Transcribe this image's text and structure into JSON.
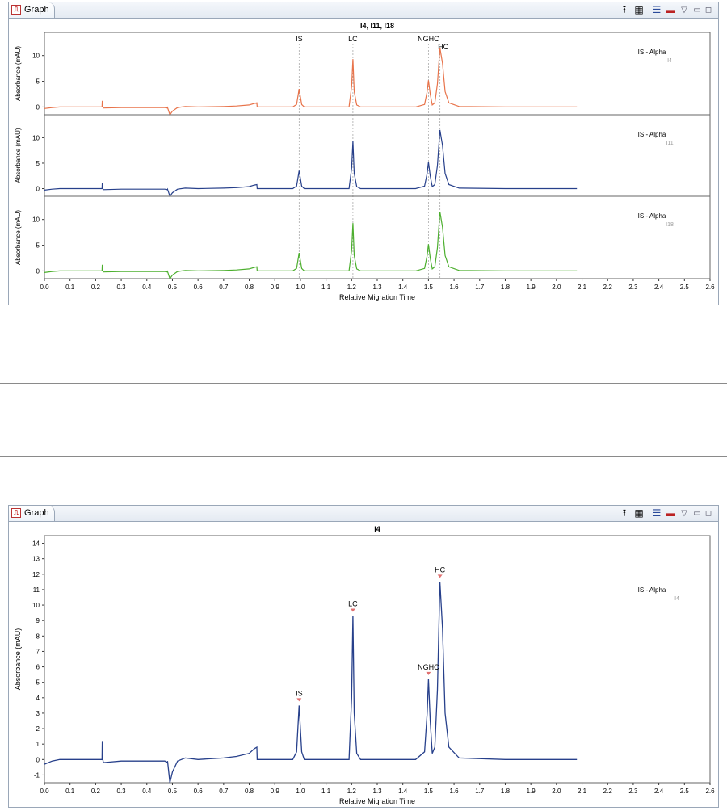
{
  "window": {
    "tab_label": "Graph",
    "tab_icon": "chart-icon"
  },
  "toolbar": [
    {
      "name": "export-icon",
      "glyph": "⭱"
    },
    {
      "name": "data-table-icon",
      "glyph": "▦"
    },
    {
      "name": "legend-toggle-icon",
      "glyph": "☰"
    },
    {
      "name": "color-line-icon",
      "glyph": "▬"
    },
    {
      "name": "view-menu-icon",
      "glyph": "▽"
    },
    {
      "name": "minimize-icon",
      "glyph": "▭"
    },
    {
      "name": "maximize-icon",
      "glyph": "◻"
    }
  ],
  "colors": {
    "orange": "#e8734a",
    "blue": "#27408b",
    "green": "#4caf2e",
    "marker": "#e07070"
  },
  "chart_data": [
    {
      "type": "line",
      "layout": "stacked",
      "title": "I4, I11, I18",
      "xlabel": "Relative Migration Time",
      "ylabel": "Absorbance (mAU)",
      "xlim": [
        0,
        2.6
      ],
      "ylim": [
        -1.5,
        14.5
      ],
      "xticks": [
        "0.0",
        "0.1",
        "0.2",
        "0.3",
        "0.4",
        "0.5",
        "0.6",
        "0.7",
        "0.8",
        "0.9",
        "1.0",
        "1.1",
        "1.2",
        "1.3",
        "1.4",
        "1.5",
        "1.6",
        "1.7",
        "1.8",
        "1.9",
        "2.0",
        "2.1",
        "2.2",
        "2.3",
        "2.4",
        "2.5",
        "2.6"
      ],
      "yticks": [
        0,
        5,
        10
      ],
      "peaks": [
        {
          "label": "IS",
          "x": 0.995
        },
        {
          "label": "LC",
          "x": 1.205
        },
        {
          "label": "NGHC",
          "x": 1.5
        },
        {
          "label": "HC",
          "x": 1.545
        }
      ],
      "series": [
        {
          "legend": "IS - Alpha",
          "name": "I4",
          "color": "#e8734a"
        },
        {
          "legend": "IS - Alpha",
          "name": "I11",
          "color": "#27408b"
        },
        {
          "legend": "IS - Alpha",
          "name": "I18",
          "color": "#4caf2e"
        }
      ],
      "trace": {
        "x": [
          0.0,
          0.03,
          0.06,
          0.1,
          0.15,
          0.2,
          0.225,
          0.226,
          0.228,
          0.23,
          0.3,
          0.4,
          0.47,
          0.48,
          0.481,
          0.49,
          0.5,
          0.52,
          0.55,
          0.6,
          0.7,
          0.75,
          0.8,
          0.82,
          0.83,
          0.831,
          0.84,
          0.9,
          0.97,
          0.985,
          0.995,
          1.005,
          1.015,
          1.05,
          1.15,
          1.19,
          1.2,
          1.205,
          1.21,
          1.22,
          1.235,
          1.3,
          1.45,
          1.485,
          1.495,
          1.5,
          1.507,
          1.515,
          1.525,
          1.535,
          1.545,
          1.555,
          1.565,
          1.58,
          1.62,
          1.8,
          2.08
        ],
        "y": [
          -0.3,
          -0.1,
          0.0,
          0.0,
          0.0,
          0.0,
          0.0,
          1.2,
          0.0,
          -0.2,
          -0.1,
          -0.1,
          -0.1,
          -0.2,
          -0.1,
          -1.5,
          -0.8,
          -0.1,
          0.1,
          0.0,
          0.1,
          0.2,
          0.4,
          0.7,
          0.8,
          0.0,
          0.0,
          0.0,
          0.0,
          0.5,
          3.5,
          0.5,
          0.0,
          0.0,
          0.0,
          0.0,
          4.0,
          9.3,
          3.0,
          0.4,
          0.0,
          0.0,
          0.0,
          0.5,
          3.0,
          5.2,
          2.5,
          0.4,
          0.8,
          4.5,
          11.5,
          8.5,
          3.0,
          0.8,
          0.1,
          0.0,
          0.0
        ]
      }
    },
    {
      "type": "line",
      "title": "I4",
      "xlabel": "Relative Migration Time",
      "ylabel": "Absorbance (mAU)",
      "xlim": [
        0,
        2.6
      ],
      "ylim": [
        -1.5,
        14.5
      ],
      "xticks": [
        "0.0",
        "0.1",
        "0.2",
        "0.3",
        "0.4",
        "0.5",
        "0.6",
        "0.7",
        "0.8",
        "0.9",
        "1.0",
        "1.1",
        "1.2",
        "1.3",
        "1.4",
        "1.5",
        "1.6",
        "1.7",
        "1.8",
        "1.9",
        "2.0",
        "2.1",
        "2.2",
        "2.3",
        "2.4",
        "2.5",
        "2.6"
      ],
      "yticks": [
        -1,
        0,
        1,
        2,
        3,
        4,
        5,
        6,
        7,
        8,
        9,
        10,
        11,
        12,
        13,
        14
      ],
      "peaks": [
        {
          "label": "IS",
          "x": 0.995,
          "y": 3.5
        },
        {
          "label": "LC",
          "x": 1.205,
          "y": 9.3
        },
        {
          "label": "NGHC",
          "x": 1.5,
          "y": 5.2
        },
        {
          "label": "HC",
          "x": 1.545,
          "y": 11.5
        }
      ],
      "series": [
        {
          "legend": "IS - Alpha",
          "name": "I4",
          "color": "#27408b"
        }
      ]
    }
  ]
}
